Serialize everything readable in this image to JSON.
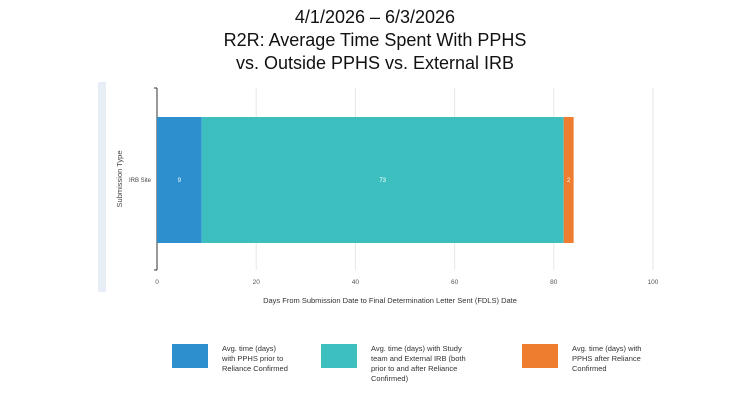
{
  "chart_data": {
    "type": "bar",
    "orientation": "horizontal",
    "stacked": true,
    "title_lines": [
      "4/1/2026 – 6/3/2026",
      "R2R: Average Time Spent With PPHS",
      "vs. Outside PPHS vs. External IRB"
    ],
    "xlabel": "Days From Submission Date to Final Determination Letter Sent (FDLS) Date",
    "ylabel": "Submission Type",
    "categories": [
      "IRB Site"
    ],
    "xlim": [
      0,
      100
    ],
    "xticks": [
      0,
      20,
      40,
      60,
      80,
      100
    ],
    "grid": true,
    "legend_position": "bottom",
    "series": [
      {
        "name": "Avg. time (days) with PPHS prior to Reliance Confirmed",
        "legend_lines": [
          "Avg. time (days)",
          "with PPHS prior to",
          "Reliance Confirmed"
        ],
        "values": [
          9
        ],
        "label": "9",
        "color": "#2e8fcf"
      },
      {
        "name": "Avg. time (days) with Study team and External IRB (both prior to and after Reliance Confirmed)",
        "legend_lines": [
          "Avg. time (days) with Study",
          "team and External IRB (both",
          "prior to and after Reliance",
          "Confirmed)"
        ],
        "values": [
          73
        ],
        "label": "73",
        "color": "#3dbfbf"
      },
      {
        "name": "Avg. time (days) with PPHS after Reliance Confirmed",
        "legend_lines": [
          "Avg. time (days) with",
          "PPHS after Reliance",
          "Confirmed"
        ],
        "values": [
          2
        ],
        "label": "2",
        "color": "#ee7d30"
      }
    ]
  }
}
